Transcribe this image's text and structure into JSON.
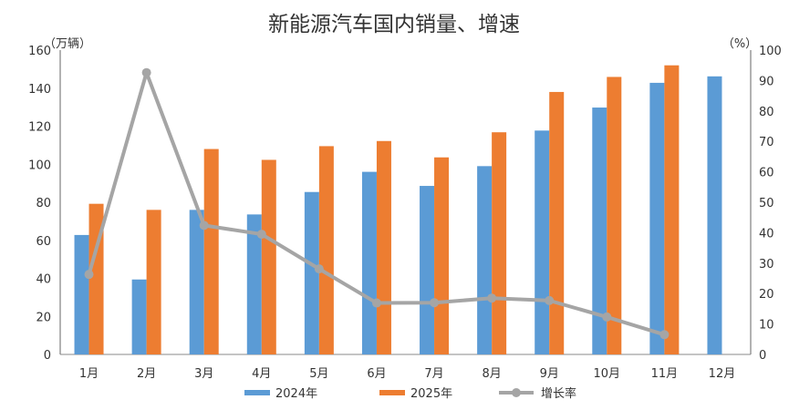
{
  "chart_data": {
    "type": "bar",
    "title": "新能源汽车国内销量、增速",
    "left_unit": "（万辆）",
    "right_unit": "（%）",
    "categories": [
      "1月",
      "2月",
      "3月",
      "4月",
      "5月",
      "6月",
      "7月",
      "8月",
      "9月",
      "10月",
      "11月",
      "12月"
    ],
    "y_left_ticks": [
      "0",
      "20",
      "40",
      "60",
      "80",
      "100",
      "120",
      "140",
      "160"
    ],
    "y_right_ticks": [
      "0",
      "10",
      "20",
      "30",
      "40",
      "50",
      "60",
      "70",
      "80",
      "90",
      "100"
    ],
    "y_left_lim": [
      0,
      160
    ],
    "y_right_lim": [
      0,
      100
    ],
    "grid": false,
    "legend_position": "bottom",
    "series": [
      {
        "name": "2024年",
        "type": "bar",
        "axis": "left",
        "color": "#5B9BD5",
        "values": [
          62.8,
          39.4,
          76.0,
          73.6,
          85.4,
          96.0,
          88.6,
          99.0,
          117.7,
          129.8,
          142.8,
          146.2
        ]
      },
      {
        "name": "2025年",
        "type": "bar",
        "axis": "left",
        "color": "#ED7D31",
        "values": [
          79.2,
          76.0,
          108.0,
          102.3,
          109.5,
          112.2,
          103.6,
          116.8,
          138.0,
          145.9,
          152.0,
          null
        ]
      },
      {
        "name": "增长率",
        "type": "line",
        "axis": "right",
        "color": "#A5A5A5",
        "values": [
          26.3,
          92.6,
          42.4,
          39.5,
          28.1,
          16.9,
          17.0,
          18.5,
          17.7,
          12.3,
          6.5,
          null
        ]
      }
    ]
  }
}
